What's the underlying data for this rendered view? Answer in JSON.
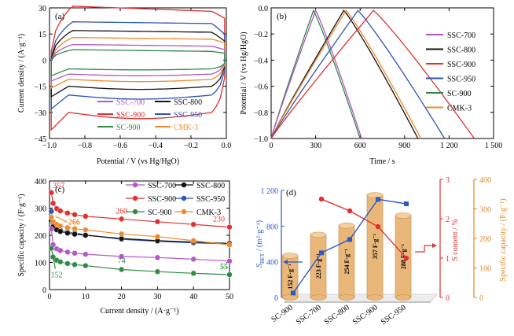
{
  "colors": {
    "ssc700": "#b455c8",
    "ssc800": "#111111",
    "ssc900": "#e03030",
    "ssc950": "#2d55b4",
    "sc900": "#2e8b46",
    "cmk3": "#f08a2a",
    "blue_axis": "#2a5bc8",
    "red_axis": "#e03030",
    "orange_axis": "#e08a2a"
  },
  "chart_data": [
    {
      "panel": "(a)",
      "type": "line",
      "subtype": "cyclic-voltammetry",
      "xlabel": "Potential / V (vs Hg/HgO)",
      "ylabel": "Current density / (A·g⁻¹)",
      "xlim": [
        -1.0,
        0.0
      ],
      "ylim": [
        -45,
        30
      ],
      "xticks": [
        "-1.0",
        "-0.8",
        "-0.6",
        "-0.4",
        "-0.2",
        "0.0"
      ],
      "yticks": [
        "-45",
        "-30",
        "-15",
        "0",
        "15",
        "30"
      ],
      "legend": [
        {
          "name": "SSC-700",
          "color": "#b455c8"
        },
        {
          "name": "SSC-800",
          "color": "#111111"
        },
        {
          "name": "SSC-900",
          "color": "#e03030"
        },
        {
          "name": "SSC-950",
          "color": "#2d55b4"
        },
        {
          "name": "SC-900",
          "color": "#2e8b46"
        },
        {
          "name": "CMK-3",
          "color": "#f08a2a"
        }
      ],
      "series": [
        {
          "name": "SSC-900",
          "anodic_plateau": 28,
          "cathodic_plateau": -30,
          "anodic_start": 5,
          "anodic_peak": 31,
          "cathodic_end": -40,
          "end_high": 24,
          "end_low": -10,
          "color": "#e03030"
        },
        {
          "name": "SSC-950",
          "anodic_plateau": 21,
          "cathodic_plateau": -20,
          "anodic_start": 2,
          "anodic_peak": 22,
          "cathodic_end": -28,
          "end_high": 15,
          "end_low": -6,
          "color": "#2d55b4"
        },
        {
          "name": "SSC-800",
          "anodic_plateau": 16,
          "cathodic_plateau": -15,
          "anodic_start": 1,
          "anodic_peak": 17,
          "cathodic_end": -21,
          "end_high": 11,
          "end_low": -4,
          "color": "#111111"
        },
        {
          "name": "CMK-3",
          "anodic_plateau": 12,
          "cathodic_plateau": -11,
          "anodic_start": 0,
          "anodic_peak": 13,
          "cathodic_end": -16,
          "end_high": 10,
          "end_low": -3,
          "color": "#f08a2a"
        },
        {
          "name": "SSC-700",
          "anodic_plateau": 8,
          "cathodic_plateau": -8,
          "anodic_start": 0,
          "anodic_peak": 9,
          "cathodic_end": -12,
          "end_high": 6,
          "end_low": -2,
          "color": "#b455c8"
        },
        {
          "name": "SC-900",
          "anodic_plateau": 5,
          "cathodic_plateau": -5,
          "anodic_start": 0,
          "anodic_peak": 6,
          "cathodic_end": -9,
          "end_high": 4,
          "end_low": -2,
          "color": "#2e8b46"
        }
      ]
    },
    {
      "panel": "(b)",
      "type": "line",
      "subtype": "galvanostatic-charge-discharge",
      "xlabel": "Time / s",
      "ylabel": "Potential / V (vs Hg/HgO)",
      "xlim": [
        0,
        1500
      ],
      "ylim": [
        -1.0,
        0.0
      ],
      "xticks": [
        "0",
        "300",
        "600",
        "900",
        "1 200",
        "1 500"
      ],
      "yticks": [
        "-1.0",
        "-0.8",
        "-0.6",
        "-0.4",
        "-0.2",
        "0.0"
      ],
      "legend": [
        {
          "name": "SSC-700",
          "color": "#b455c8"
        },
        {
          "name": "SSC-800",
          "color": "#111111"
        },
        {
          "name": "SSC-900",
          "color": "#e03030"
        },
        {
          "name": "SSC-950",
          "color": "#2d55b4"
        },
        {
          "name": "SC-900",
          "color": "#2e8b46"
        },
        {
          "name": "CMK-3",
          "color": "#f08a2a"
        }
      ],
      "series": [
        {
          "name": "SC-900",
          "t_peak": 285,
          "t_end": 600,
          "color": "#2e8b46"
        },
        {
          "name": "SSC-700",
          "t_peak": 300,
          "t_end": 610,
          "color": "#b455c8"
        },
        {
          "name": "SSC-800",
          "t_peak": 490,
          "t_end": 990,
          "color": "#111111"
        },
        {
          "name": "CMK-3",
          "t_peak": 505,
          "t_end": 1010,
          "color": "#f08a2a"
        },
        {
          "name": "SSC-950",
          "t_peak": 585,
          "t_end": 1170,
          "color": "#2d55b4"
        },
        {
          "name": "SSC-900",
          "t_peak": 690,
          "t_end": 1370,
          "color": "#e03030"
        }
      ]
    },
    {
      "panel": "(c)",
      "type": "line",
      "subtype": "rate-capability",
      "xlabel": "Current density / (A·g⁻¹)",
      "ylabel": "Specific capacity / (F·g⁻¹)",
      "xlim": [
        0,
        50
      ],
      "ylim": [
        0,
        400
      ],
      "xticks": [
        "0",
        "10",
        "20",
        "30",
        "40",
        "50"
      ],
      "yticks": [
        "0",
        "100",
        "200",
        "300",
        "400"
      ],
      "x": [
        0.5,
        1,
        2,
        3,
        5,
        7,
        10,
        20,
        30,
        40,
        50
      ],
      "legend": [
        {
          "name": "SSC-700",
          "color": "#b455c8"
        },
        {
          "name": "SSC-800",
          "color": "#111111"
        },
        {
          "name": "SSC-900",
          "color": "#e03030"
        },
        {
          "name": "SSC-950",
          "color": "#2d55b4"
        },
        {
          "name": "SC-900",
          "color": "#2e8b46"
        },
        {
          "name": "CMK-3",
          "color": "#f08a2a"
        }
      ],
      "series": [
        {
          "name": "SSC-900",
          "color": "#e03030",
          "values": [
            357,
            318,
            298,
            290,
            282,
            276,
            270,
            260,
            250,
            240,
            230
          ]
        },
        {
          "name": "SSC-950",
          "color": "#2d55b4",
          "values": [
            288,
            245,
            228,
            220,
            212,
            208,
            202,
            185,
            178,
            172,
            168
          ]
        },
        {
          "name": "SSC-800",
          "color": "#111111",
          "values": [
            254,
            232,
            220,
            214,
            208,
            204,
            200,
            188,
            180,
            175,
            170
          ]
        },
        {
          "name": "CMK-3",
          "color": "#f08a2a",
          "values": [
            266,
            250,
            240,
            234,
            228,
            224,
            220,
            205,
            195,
            180,
            165
          ]
        },
        {
          "name": "SSC-700",
          "color": "#b455c8",
          "values": [
            223,
            165,
            150,
            144,
            138,
            134,
            130,
            122,
            118,
            112,
            105
          ]
        },
        {
          "name": "SC-900",
          "color": "#2e8b46",
          "values": [
            152,
            120,
            108,
            102,
            96,
            92,
            88,
            74,
            66,
            60,
            55
          ]
        }
      ],
      "annotations": [
        {
          "text": "357",
          "color": "#e03030"
        },
        {
          "text": "260",
          "color": "#e03030"
        },
        {
          "text": "230",
          "color": "#e03030"
        },
        {
          "text": "266",
          "color": "#f08a2a"
        },
        {
          "text": "152",
          "color": "#2e8b46"
        },
        {
          "text": "74",
          "color": "#2e8b46"
        },
        {
          "text": "55",
          "color": "#2e8b46"
        }
      ]
    },
    {
      "panel": "(d)",
      "type": "bar",
      "subtype": "3d-bar-with-lines",
      "categories": [
        "SC-900",
        "SSC-700",
        "SSC-800",
        "SSC-900",
        "SSC-950"
      ],
      "bar_labels": [
        "152 F·g⁻¹",
        "223 F·g⁻¹",
        "254 F·g⁻¹",
        "357 F·g⁻¹",
        "288 F·g⁻¹"
      ],
      "specific_capacity": [
        152,
        223,
        254,
        357,
        288
      ],
      "sbet": [
        50,
        500,
        650,
        1100,
        1050
      ],
      "s_content": [
        null,
        2.5,
        2.2,
        1.8,
        1.0
      ],
      "left_axis": {
        "label": "S_BET / (m²·g⁻¹)",
        "label_main": "S",
        "label_sub": "BET",
        "label_rest": " / (m²·g⁻¹)",
        "ticks": [
          "0",
          "400",
          "800",
          "1 200"
        ],
        "range": [
          0,
          1200
        ],
        "color": "#2a5bc8"
      },
      "mid_axis": {
        "label": "S content / %",
        "ticks": [
          "0",
          "1",
          "2",
          "3"
        ],
        "range": [
          0,
          3
        ],
        "color": "#e03030"
      },
      "right_axis": {
        "label": "Specific capacity / (F·g⁻¹)",
        "ticks": [
          "0",
          "100",
          "200",
          "300",
          "400"
        ],
        "range": [
          0,
          400
        ],
        "color": "#e08a2a"
      }
    }
  ]
}
